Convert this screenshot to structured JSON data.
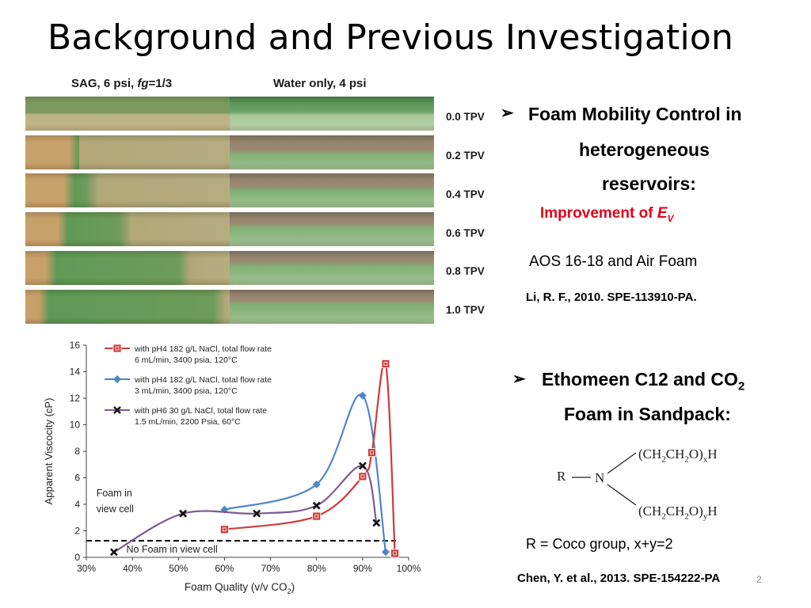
{
  "slide": {
    "title": "Background and Previous Investigation",
    "strip_headers": {
      "left": [
        "SAG, 6 psi, ",
        "fg",
        "=1/3"
      ],
      "right": "Water only, 4 psi"
    },
    "tpv_labels": [
      "0.0 TPV",
      "0.2 TPV",
      "0.4 TPV",
      "0.6 TPV",
      "0.8 TPV",
      "1.0 TPV"
    ],
    "bullet1": {
      "marker": "➢",
      "lines": [
        "Foam Mobility Control in",
        "heterogeneous",
        "reservoirs:"
      ],
      "improvement_prefix": "Improvement of ",
      "improvement_symbol": "E",
      "improvement_subscript": "V",
      "improvement_color": "#e3001b",
      "foam": "AOS 16-18 and Air Foam",
      "citation": "Li, R. F., 2010. SPE-113910-PA."
    },
    "bullet2": {
      "marker": "➢",
      "line1_prefix": "Ethomeen C12 and CO",
      "line1_sub": "2",
      "line2": "Foam in Sandpack:",
      "structure": {
        "r": "R",
        "n": "N",
        "top_chain": [
          "(CH",
          "2",
          "CH",
          "2",
          "O)",
          "x",
          "H"
        ],
        "bottom_chain": [
          "(CH",
          "2",
          "CH",
          "2",
          "O)",
          "y",
          "H"
        ]
      },
      "note": "R = Coco group, x+y=2",
      "citation": "Chen, Y. et al., 2013. SPE-154222-PA",
      "page_number": "2"
    }
  },
  "chart_data": {
    "type": "line",
    "xlabel": [
      "Foam Quality (v/v CO",
      "2",
      ")"
    ],
    "ylabel": "Apparent Viscocity (cP)",
    "xlim": [
      30,
      100
    ],
    "ylim": [
      0,
      16
    ],
    "xticks": [
      "30%",
      "40%",
      "50%",
      "60%",
      "70%",
      "80%",
      "90%",
      "100%"
    ],
    "yticks": [
      "0",
      "2",
      "4",
      "6",
      "8",
      "10",
      "12",
      "14",
      "16"
    ],
    "legend_position": "top-left",
    "series": [
      {
        "name": [
          "with pH4 182 g/L NaCl, total flow rate",
          "6 mL/min, 3400 psia, 120°C"
        ],
        "color": "#cf3b3b",
        "marker": "square",
        "x": [
          60,
          80,
          90,
          92,
          95,
          97
        ],
        "y": [
          2.1,
          3.1,
          6.1,
          7.9,
          14.6,
          0.3
        ]
      },
      {
        "name": [
          "with pH4 182 g/L NaCl, total flow rate",
          "3 mL/min, 3400 psia, 120°C"
        ],
        "color": "#4f86c6",
        "marker": "diamond",
        "x": [
          60,
          80,
          90,
          95
        ],
        "y": [
          3.6,
          5.5,
          12.2,
          0.4
        ]
      },
      {
        "name": [
          "with pH6 30 g/L NaCl, total flow rate",
          "1.5 mL/min, 2200 Psia, 60°C"
        ],
        "color": "#7d5c95",
        "marker": "x",
        "x": [
          36,
          51,
          67,
          80,
          90,
          93
        ],
        "y": [
          0.4,
          3.3,
          3.3,
          3.9,
          6.9,
          2.6
        ]
      }
    ],
    "threshold": {
      "y": 1.25,
      "label": "No Foam in view cell"
    },
    "annotation": [
      "Foam in",
      "view cell"
    ]
  }
}
